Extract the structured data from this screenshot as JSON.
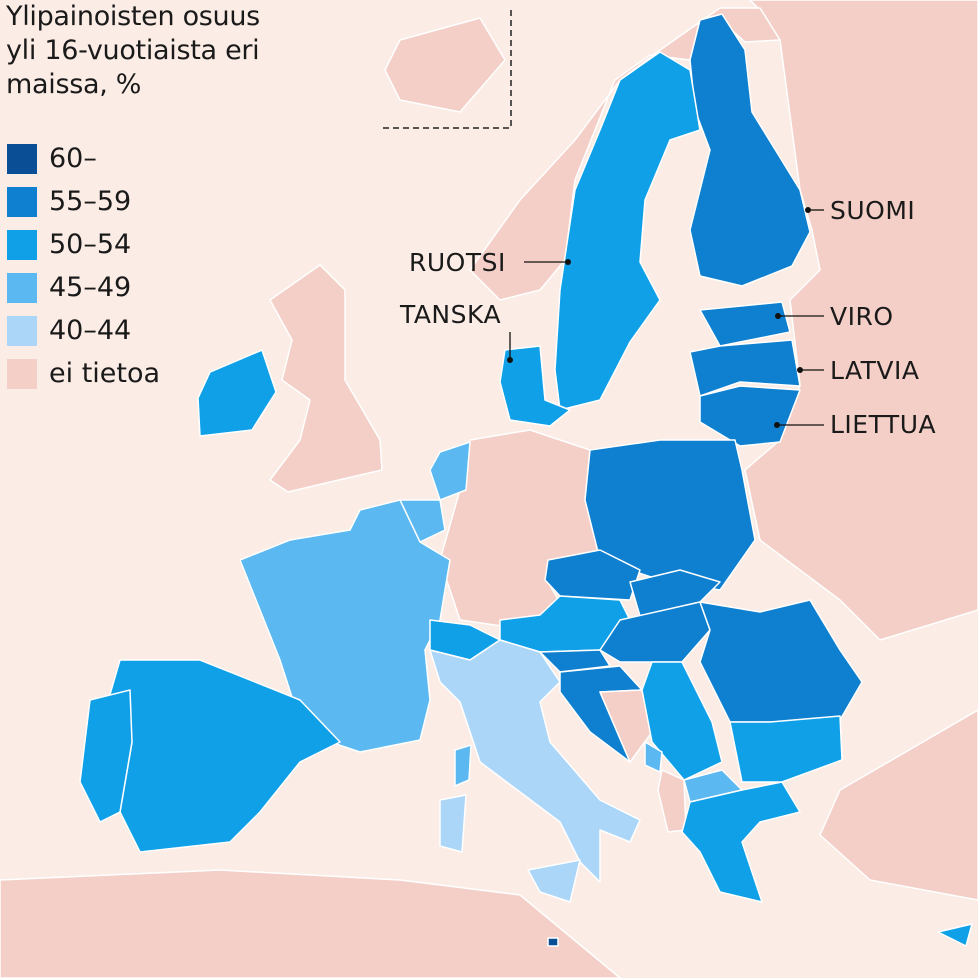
{
  "title": [
    "Ylipainoisten osuus",
    "yli 16-vuotiaista eri",
    "maissa, %"
  ],
  "legend": [
    {
      "label": "60–",
      "color": "#0a4f96"
    },
    {
      "label": "55–59",
      "color": "#0f7fcf"
    },
    {
      "label": "50–54",
      "color": "#10a0e8"
    },
    {
      "label": "45–49",
      "color": "#5bb8f0"
    },
    {
      "label": "40–44",
      "color": "#acd6f8"
    },
    {
      "label": "ei tietoa",
      "color": "#f3cfc7"
    }
  ],
  "colors": {
    "sea": "#fbece6",
    "border": "#ffffff"
  },
  "labels": {
    "suomi": "SUOMI",
    "ruotsi": "RUOTSI",
    "tanska": "TANSKA",
    "viro": "VIRO",
    "latvia": "LATVIA",
    "liettua": "LIETTUA"
  },
  "country_classes": {
    "finland": "55–59",
    "sweden": "50–54",
    "denmark": "50–54",
    "estonia": "55–59",
    "latvia": "55–59",
    "lithuania": "55–59",
    "poland": "55–59",
    "czechia": "55–59",
    "slovakia": "55–59",
    "hungary": "55–59",
    "romania": "55–59",
    "croatia": "55–59",
    "slovenia": "55–59",
    "austria": "50–54",
    "bulgaria": "50–54",
    "greece": "50–54",
    "serbia": "50–54",
    "spain": "50–54",
    "portugal": "50–54",
    "ireland": "50–54",
    "switzerland": "50–54",
    "montenegro": "45–49",
    "north-macedonia": "45–49",
    "cyprus": "50–54",
    "france": "45–49",
    "belgium": "45–49",
    "netherlands": "45–49",
    "italy": "40–44",
    "sicily": "40–44",
    "sardinia": "40–44",
    "corsica": "45–49",
    "malta": "60–",
    "germany": "ei tietoa",
    "norway": "ei tietoa",
    "united-kingdom": "ei tietoa",
    "iceland": "ei tietoa",
    "bosnia": "ei tietoa",
    "albania": "ei tietoa",
    "russia-east": "ei tietoa",
    "turkey": "ei tietoa",
    "africa": "ei tietoa"
  }
}
